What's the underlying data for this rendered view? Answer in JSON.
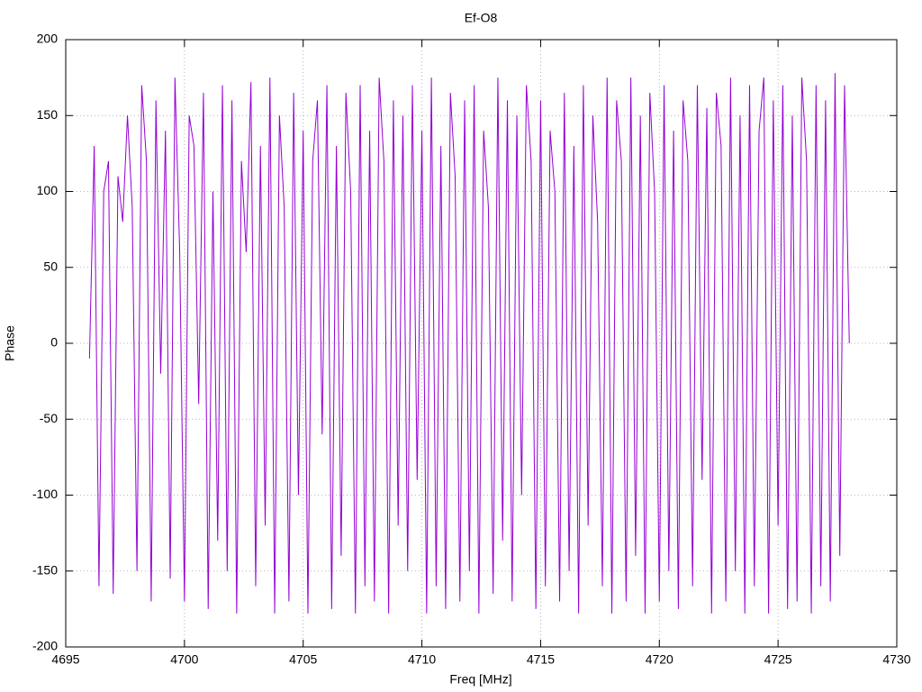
{
  "chart_data": {
    "type": "line",
    "title": "Ef-O8",
    "x_label": "Freq [MHz]",
    "y_label": "Phase",
    "color": "#9400d3",
    "grid": true,
    "xlim": [
      4695,
      4730
    ],
    "xticks": [
      4695,
      4700,
      4705,
      4710,
      4715,
      4720,
      4725,
      4730
    ],
    "ylim": [
      -200,
      200
    ],
    "yticks": [
      -200,
      -150,
      -100,
      -50,
      0,
      50,
      100,
      150,
      200
    ],
    "x": [
      4696.0,
      4696.2,
      4696.4,
      4696.6,
      4696.8,
      4697.0,
      4697.2,
      4697.4,
      4697.6,
      4697.8,
      4698.0,
      4698.2,
      4698.4,
      4698.6,
      4698.8,
      4699.0,
      4699.2,
      4699.4,
      4699.6,
      4699.8,
      4700.0,
      4700.2,
      4700.4,
      4700.6,
      4700.8,
      4701.0,
      4701.2,
      4701.4,
      4701.6,
      4701.8,
      4702.0,
      4702.2,
      4702.4,
      4702.6,
      4702.8,
      4703.0,
      4703.2,
      4703.4,
      4703.6,
      4703.8,
      4704.0,
      4704.2,
      4704.4,
      4704.6,
      4704.8,
      4705.0,
      4705.2,
      4705.4,
      4705.6,
      4705.8,
      4706.0,
      4706.2,
      4706.4,
      4706.6,
      4706.8,
      4707.0,
      4707.2,
      4707.4,
      4707.6,
      4707.8,
      4708.0,
      4708.2,
      4708.4,
      4708.6,
      4708.8,
      4709.0,
      4709.2,
      4709.4,
      4709.6,
      4709.8,
      4710.0,
      4710.2,
      4710.4,
      4710.6,
      4710.8,
      4711.0,
      4711.2,
      4711.4,
      4711.6,
      4711.8,
      4712.0,
      4712.2,
      4712.4,
      4712.6,
      4712.8,
      4713.0,
      4713.2,
      4713.4,
      4713.6,
      4713.8,
      4714.0,
      4714.2,
      4714.4,
      4714.6,
      4714.8,
      4715.0,
      4715.2,
      4715.4,
      4715.6,
      4715.8,
      4716.0,
      4716.2,
      4716.4,
      4716.6,
      4716.8,
      4717.0,
      4717.2,
      4717.4,
      4717.6,
      4717.8,
      4718.0,
      4718.2,
      4718.4,
      4718.6,
      4718.8,
      4719.0,
      4719.2,
      4719.4,
      4719.6,
      4719.8,
      4720.0,
      4720.2,
      4720.4,
      4720.6,
      4720.8,
      4721.0,
      4721.2,
      4721.4,
      4721.6,
      4721.8,
      4722.0,
      4722.2,
      4722.4,
      4722.6,
      4722.8,
      4723.0,
      4723.2,
      4723.4,
      4723.6,
      4723.8,
      4724.0,
      4724.2,
      4724.4,
      4724.6,
      4724.8,
      4725.0,
      4725.2,
      4725.4,
      4725.6,
      4725.8,
      4726.0,
      4726.2,
      4726.4,
      4726.6,
      4726.8,
      4727.0,
      4727.2,
      4727.4,
      4727.6,
      4727.8,
      4728.0
    ],
    "values": [
      -10,
      130,
      -160,
      100,
      120,
      -165,
      110,
      80,
      150,
      90,
      -150,
      170,
      120,
      -170,
      160,
      -20,
      140,
      -155,
      175,
      60,
      -170,
      150,
      130,
      -40,
      165,
      -175,
      100,
      -130,
      170,
      -150,
      160,
      -178,
      120,
      60,
      172,
      -160,
      130,
      -120,
      175,
      -178,
      150,
      90,
      -170,
      165,
      -100,
      140,
      -178,
      120,
      160,
      -60,
      170,
      -175,
      130,
      -140,
      165,
      100,
      -178,
      170,
      -160,
      140,
      -170,
      175,
      120,
      -178,
      160,
      -120,
      150,
      -150,
      170,
      -90,
      140,
      -178,
      175,
      -160,
      130,
      -175,
      165,
      110,
      -170,
      160,
      -150,
      170,
      -178,
      140,
      90,
      -165,
      175,
      -130,
      160,
      -170,
      150,
      -100,
      170,
      120,
      -175,
      160,
      -160,
      140,
      100,
      -170,
      165,
      -150,
      130,
      -178,
      170,
      -120,
      150,
      80,
      -160,
      175,
      -178,
      160,
      120,
      -170,
      175,
      -140,
      150,
      -178,
      165,
      100,
      -170,
      170,
      -150,
      140,
      -175,
      160,
      120,
      -160,
      170,
      -90,
      155,
      -178,
      165,
      130,
      -170,
      175,
      -150,
      150,
      -178,
      170,
      -160,
      140,
      175,
      -178,
      160,
      -120,
      170,
      -175,
      150,
      -170,
      175,
      120,
      -178,
      170,
      -160,
      160,
      -170,
      178,
      -140,
      170,
      0
    ]
  }
}
